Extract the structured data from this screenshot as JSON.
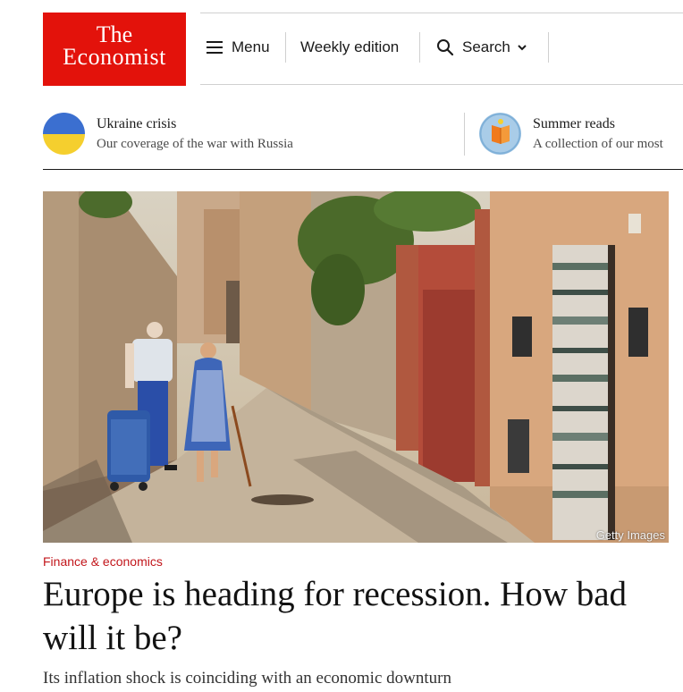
{
  "header": {
    "logo_line1": "The",
    "logo_line2": "Economist",
    "nav": {
      "menu": "Menu",
      "weekly": "Weekly edition",
      "search": "Search"
    }
  },
  "topics": [
    {
      "title": "Ukraine crisis",
      "subtitle": "Our coverage of the war with Russia",
      "icon": "ukraine-flag-icon"
    },
    {
      "title": "Summer reads",
      "subtitle": "A collection of our most",
      "icon": "book-icon"
    }
  ],
  "article": {
    "image_credit": "Getty Images",
    "section": "Finance & economics",
    "headline": "Europe is heading for recession. How bad will it be?",
    "standfirst": "Its inflation shock is coinciding with an economic downturn"
  },
  "colors": {
    "brand_red": "#e3120b",
    "section_red": "#c2161b"
  }
}
